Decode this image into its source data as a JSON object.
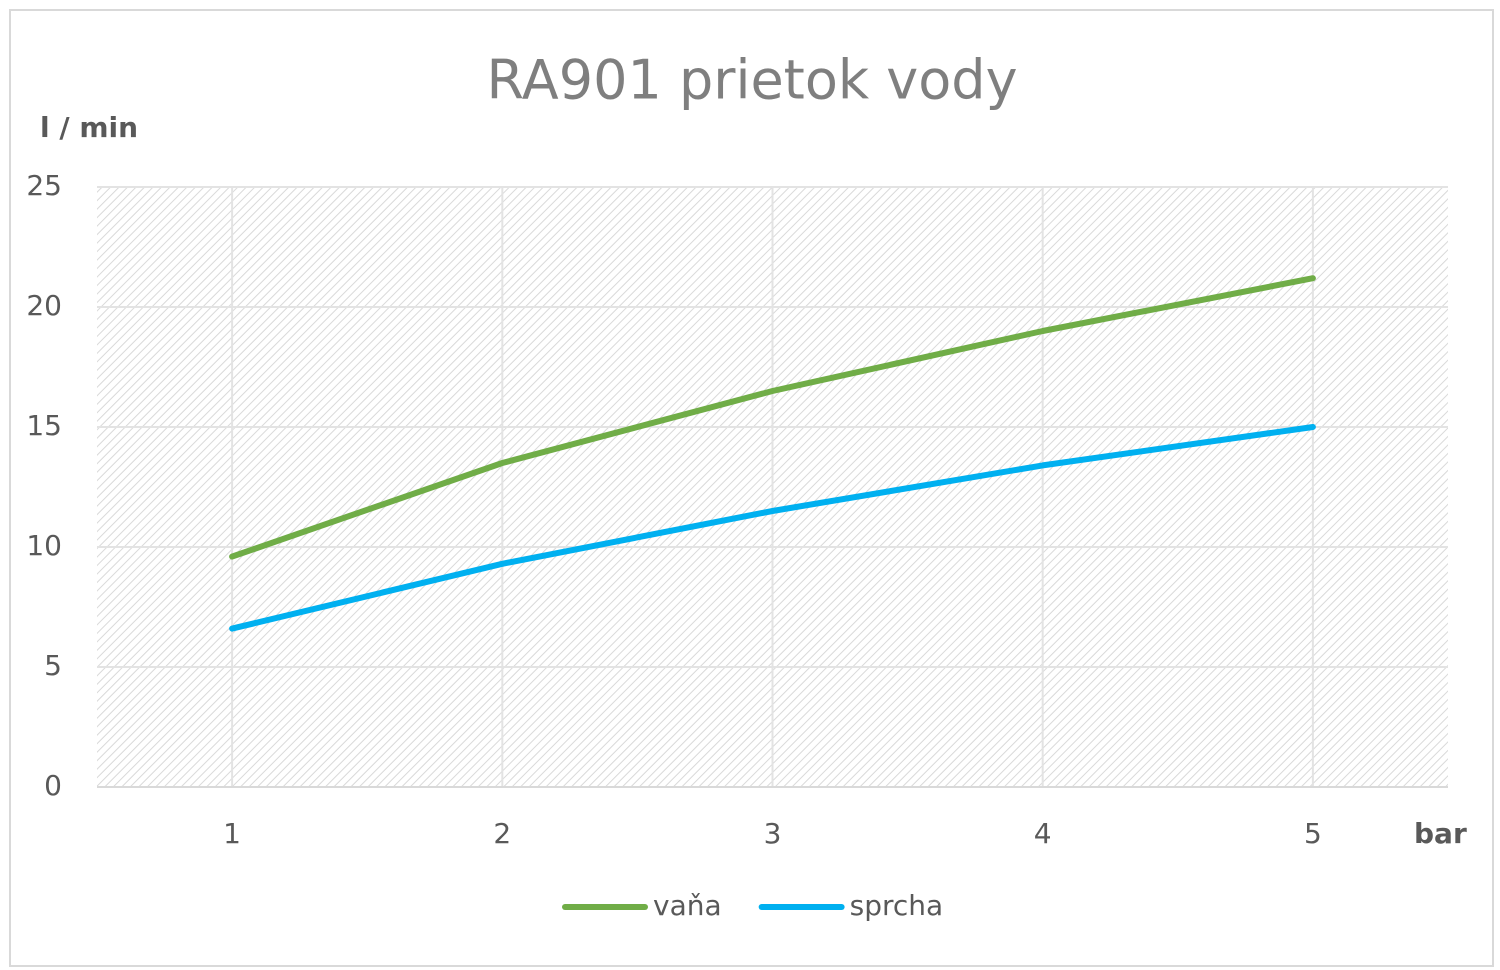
{
  "chart_data": {
    "type": "line",
    "title": "RA901 prietok vody",
    "y_label": "l / min",
    "x_label": "bar",
    "x": [
      1,
      2,
      3,
      4,
      5
    ],
    "series": [
      {
        "name": "vaňa",
        "color": "#70ad47",
        "values": [
          9.6,
          13.5,
          16.5,
          19.0,
          21.2
        ]
      },
      {
        "name": "sprcha",
        "color": "#00b0f0",
        "values": [
          6.6,
          9.3,
          11.5,
          13.4,
          15.0
        ]
      }
    ],
    "xlim": [
      0.5,
      5.5
    ],
    "xticks": [
      1,
      2,
      3,
      4,
      5
    ],
    "ylim": [
      0,
      25
    ],
    "yticks": [
      0,
      5,
      10,
      15,
      20,
      25
    ],
    "grid": true,
    "legend": "bottom"
  }
}
